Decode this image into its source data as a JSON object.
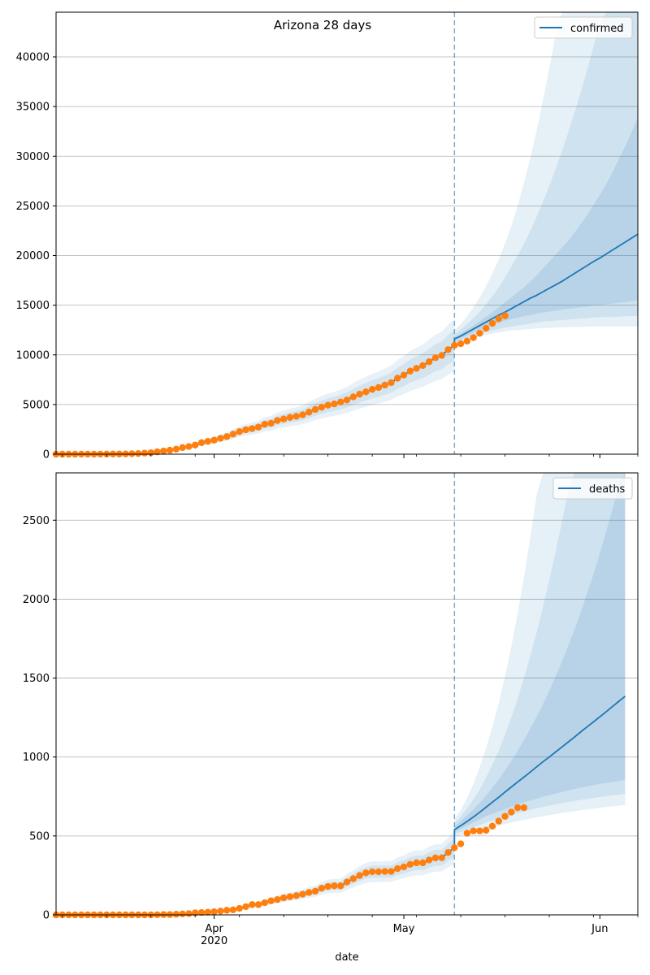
{
  "chart_data": [
    {
      "type": "line",
      "title": "Arizona 28 days",
      "xlabel": "",
      "ylabel": "",
      "legend": {
        "entries": [
          "confirmed"
        ],
        "placement": "top-right"
      },
      "grid": {
        "y": true,
        "x": false
      },
      "x_range": [
        "2020-03-07",
        "2020-06-07"
      ],
      "ylim": [
        0,
        44500
      ],
      "yticks": [
        0,
        5000,
        10000,
        15000,
        20000,
        25000,
        30000,
        35000,
        40000
      ],
      "vline_date": "2020-05-09",
      "observed_start": "2020-03-07",
      "observed": [
        0,
        0,
        1,
        2,
        3,
        5,
        6,
        9,
        12,
        18,
        20,
        27,
        45,
        68,
        105,
        152,
        235,
        326,
        401,
        508,
        665,
        773,
        919,
        1157,
        1289,
        1413,
        1598,
        1769,
        2019,
        2269,
        2456,
        2575,
        2726,
        3018,
        3112,
        3393,
        3542,
        3702,
        3809,
        3964,
        4234,
        4507,
        4724,
        4933,
        5064,
        5251,
        5459,
        5769,
        6045,
        6280,
        6526,
        6716,
        6955,
        7202,
        7648,
        7962,
        8364,
        8640,
        8924,
        9305,
        9707,
        9945,
        10526,
        10960,
        11119,
        11383,
        11736,
        12176,
        12674,
        13169,
        13631,
        13937
      ],
      "forecast_start": "2020-05-09",
      "forecast_median": [
        11600,
        11900,
        12250,
        12600,
        12950,
        13300,
        13650,
        14000,
        14300,
        14650,
        15000,
        15350,
        15700,
        16000,
        16350,
        16700,
        17050,
        17400,
        17800,
        18200,
        18600,
        19000,
        19400,
        19750,
        20150,
        20550,
        20950,
        21350,
        21750,
        22150
      ],
      "band_50": [
        [
          11400,
          11800
        ],
        [
          11650,
          12150
        ],
        [
          11950,
          12550
        ],
        [
          12250,
          12950
        ],
        [
          12550,
          13400
        ],
        [
          12800,
          13850
        ],
        [
          13000,
          14300
        ],
        [
          13250,
          14800
        ],
        [
          13450,
          15300
        ],
        [
          13600,
          15800
        ],
        [
          13750,
          16300
        ],
        [
          13900,
          16800
        ],
        [
          14000,
          17400
        ],
        [
          14150,
          18000
        ],
        [
          14250,
          18700
        ],
        [
          14350,
          19400
        ],
        [
          14450,
          20100
        ],
        [
          14550,
          20800
        ],
        [
          14650,
          21500
        ],
        [
          14700,
          22300
        ],
        [
          14800,
          23200
        ],
        [
          14850,
          24100
        ],
        [
          14950,
          25100
        ],
        [
          15000,
          26100
        ],
        [
          15100,
          27200
        ],
        [
          15150,
          28400
        ],
        [
          15250,
          29700
        ],
        [
          15300,
          31000
        ],
        [
          15400,
          32400
        ],
        [
          15500,
          33900
        ]
      ],
      "band_80": [
        [
          11200,
          12100
        ],
        [
          11450,
          12550
        ],
        [
          11700,
          13100
        ],
        [
          11950,
          13700
        ],
        [
          12150,
          14350
        ],
        [
          12300,
          15100
        ],
        [
          12450,
          15900
        ],
        [
          12600,
          16800
        ],
        [
          12750,
          17800
        ],
        [
          12850,
          18900
        ],
        [
          12950,
          20000
        ],
        [
          13050,
          21200
        ],
        [
          13150,
          22500
        ],
        [
          13250,
          23900
        ],
        [
          13350,
          25400
        ],
        [
          13400,
          27000
        ],
        [
          13450,
          28700
        ],
        [
          13500,
          30500
        ],
        [
          13550,
          32400
        ],
        [
          13600,
          34400
        ],
        [
          13650,
          36500
        ],
        [
          13700,
          38700
        ],
        [
          13750,
          41000
        ],
        [
          13800,
          43400
        ],
        [
          13800,
          45000
        ],
        [
          13850,
          45000
        ],
        [
          13850,
          45000
        ],
        [
          13900,
          45000
        ],
        [
          13900,
          45000
        ],
        [
          13950,
          45000
        ]
      ],
      "band_95": [
        [
          11000,
          12500
        ],
        [
          11250,
          13100
        ],
        [
          11450,
          13900
        ],
        [
          11650,
          14800
        ],
        [
          11850,
          15800
        ],
        [
          12000,
          16900
        ],
        [
          12150,
          18200
        ],
        [
          12250,
          19600
        ],
        [
          12350,
          21200
        ],
        [
          12450,
          23000
        ],
        [
          12500,
          25000
        ],
        [
          12550,
          27300
        ],
        [
          12600,
          29800
        ],
        [
          12650,
          32600
        ],
        [
          12700,
          35600
        ],
        [
          12700,
          38800
        ],
        [
          12750,
          42300
        ],
        [
          12750,
          45000
        ],
        [
          12800,
          45000
        ],
        [
          12800,
          45000
        ],
        [
          12800,
          45000
        ],
        [
          12850,
          45000
        ],
        [
          12850,
          45000
        ],
        [
          12850,
          45000
        ],
        [
          12850,
          45000
        ],
        [
          12850,
          45000
        ],
        [
          12850,
          45000
        ],
        [
          12850,
          45000
        ],
        [
          12850,
          45000
        ],
        [
          12850,
          45000
        ]
      ]
    },
    {
      "type": "line",
      "title": "",
      "xlabel": "date",
      "ylabel": "",
      "legend": {
        "entries": [
          "deaths"
        ],
        "placement": "top-right"
      },
      "grid": {
        "y": true,
        "x": false
      },
      "x_range": [
        "2020-03-07",
        "2020-06-07"
      ],
      "ylim": [
        0,
        2800
      ],
      "yticks": [
        0,
        500,
        1000,
        1500,
        2000,
        2500
      ],
      "xticks": [
        {
          "date": "2020-04-01",
          "label": "Apr",
          "sublabel": "2020"
        },
        {
          "date": "2020-05-01",
          "label": "May",
          "sublabel": ""
        },
        {
          "date": "2020-06-01",
          "label": "Jun",
          "sublabel": ""
        }
      ],
      "vline_date": "2020-05-09",
      "observed_start": "2020-03-07",
      "observed": [
        0,
        0,
        0,
        0,
        0,
        0,
        0,
        0,
        0,
        0,
        0,
        0,
        0,
        0,
        0,
        0,
        1,
        2,
        2,
        4,
        6,
        8,
        13,
        15,
        17,
        20,
        24,
        29,
        32,
        41,
        52,
        65,
        65,
        77,
        89,
        97,
        108,
        115,
        122,
        131,
        142,
        150,
        169,
        180,
        184,
        184,
        208,
        229,
        249,
        266,
        273,
        273,
        275,
        275,
        293,
        304,
        320,
        330,
        330,
        348,
        361,
        362,
        395,
        426,
        450,
        517,
        532,
        532,
        536,
        562,
        594,
        624,
        651,
        679,
        679
      ],
      "forecast_start": "2020-05-09",
      "forecast_median": [
        540,
        565,
        592,
        620,
        650,
        682,
        714,
        745,
        778,
        810,
        842,
        873,
        905,
        938,
        970,
        1000,
        1032,
        1063,
        1095,
        1127,
        1160,
        1192,
        1223,
        1255,
        1287,
        1320,
        1353,
        1385
      ],
      "band_50": [
        [
          525,
          560
        ],
        [
          545,
          595
        ],
        [
          565,
          630
        ],
        [
          585,
          668
        ],
        [
          605,
          710
        ],
        [
          625,
          755
        ],
        [
          640,
          805
        ],
        [
          655,
          858
        ],
        [
          670,
          915
        ],
        [
          685,
          975
        ],
        [
          700,
          1040
        ],
        [
          712,
          1108
        ],
        [
          724,
          1180
        ],
        [
          736,
          1255
        ],
        [
          748,
          1335
        ],
        [
          758,
          1420
        ],
        [
          768,
          1510
        ],
        [
          778,
          1605
        ],
        [
          788,
          1705
        ],
        [
          798,
          1810
        ],
        [
          806,
          1920
        ],
        [
          814,
          2040
        ],
        [
          822,
          2160
        ],
        [
          830,
          2290
        ],
        [
          836,
          2430
        ],
        [
          842,
          2570
        ],
        [
          848,
          2720
        ],
        [
          855,
          2880
        ]
      ],
      "band_80": [
        [
          510,
          580
        ],
        [
          525,
          625
        ],
        [
          540,
          675
        ],
        [
          555,
          730
        ],
        [
          570,
          795
        ],
        [
          585,
          870
        ],
        [
          598,
          950
        ],
        [
          610,
          1040
        ],
        [
          622,
          1140
        ],
        [
          634,
          1250
        ],
        [
          645,
          1370
        ],
        [
          655,
          1500
        ],
        [
          665,
          1640
        ],
        [
          675,
          1790
        ],
        [
          684,
          1950
        ],
        [
          692,
          2120
        ],
        [
          700,
          2300
        ],
        [
          708,
          2490
        ],
        [
          715,
          2690
        ],
        [
          722,
          2900
        ],
        [
          729,
          2900
        ],
        [
          735,
          2900
        ],
        [
          741,
          2900
        ],
        [
          747,
          2900
        ],
        [
          752,
          2900
        ],
        [
          757,
          2900
        ],
        [
          762,
          2900
        ],
        [
          767,
          2900
        ]
      ],
      "band_95": [
        [
          495,
          605
        ],
        [
          505,
          665
        ],
        [
          515,
          740
        ],
        [
          525,
          830
        ],
        [
          535,
          935
        ],
        [
          545,
          1055
        ],
        [
          555,
          1190
        ],
        [
          565,
          1340
        ],
        [
          575,
          1510
        ],
        [
          585,
          1700
        ],
        [
          594,
          1910
        ],
        [
          602,
          2140
        ],
        [
          610,
          2390
        ],
        [
          618,
          2660
        ],
        [
          625,
          2900
        ],
        [
          632,
          2900
        ],
        [
          639,
          2900
        ],
        [
          645,
          2900
        ],
        [
          651,
          2900
        ],
        [
          657,
          2900
        ],
        [
          663,
          2900
        ],
        [
          668,
          2900
        ],
        [
          673,
          2900
        ],
        [
          678,
          2900
        ],
        [
          683,
          2900
        ],
        [
          688,
          2900
        ],
        [
          692,
          2900
        ],
        [
          696,
          2900
        ]
      ]
    }
  ],
  "colors": {
    "forecast_line": "#1f77b4",
    "observed_points": "#ff7f0e",
    "band_fill": "#1f77b4",
    "grid": "#b0b0b0",
    "vline": "#1f77b4"
  }
}
